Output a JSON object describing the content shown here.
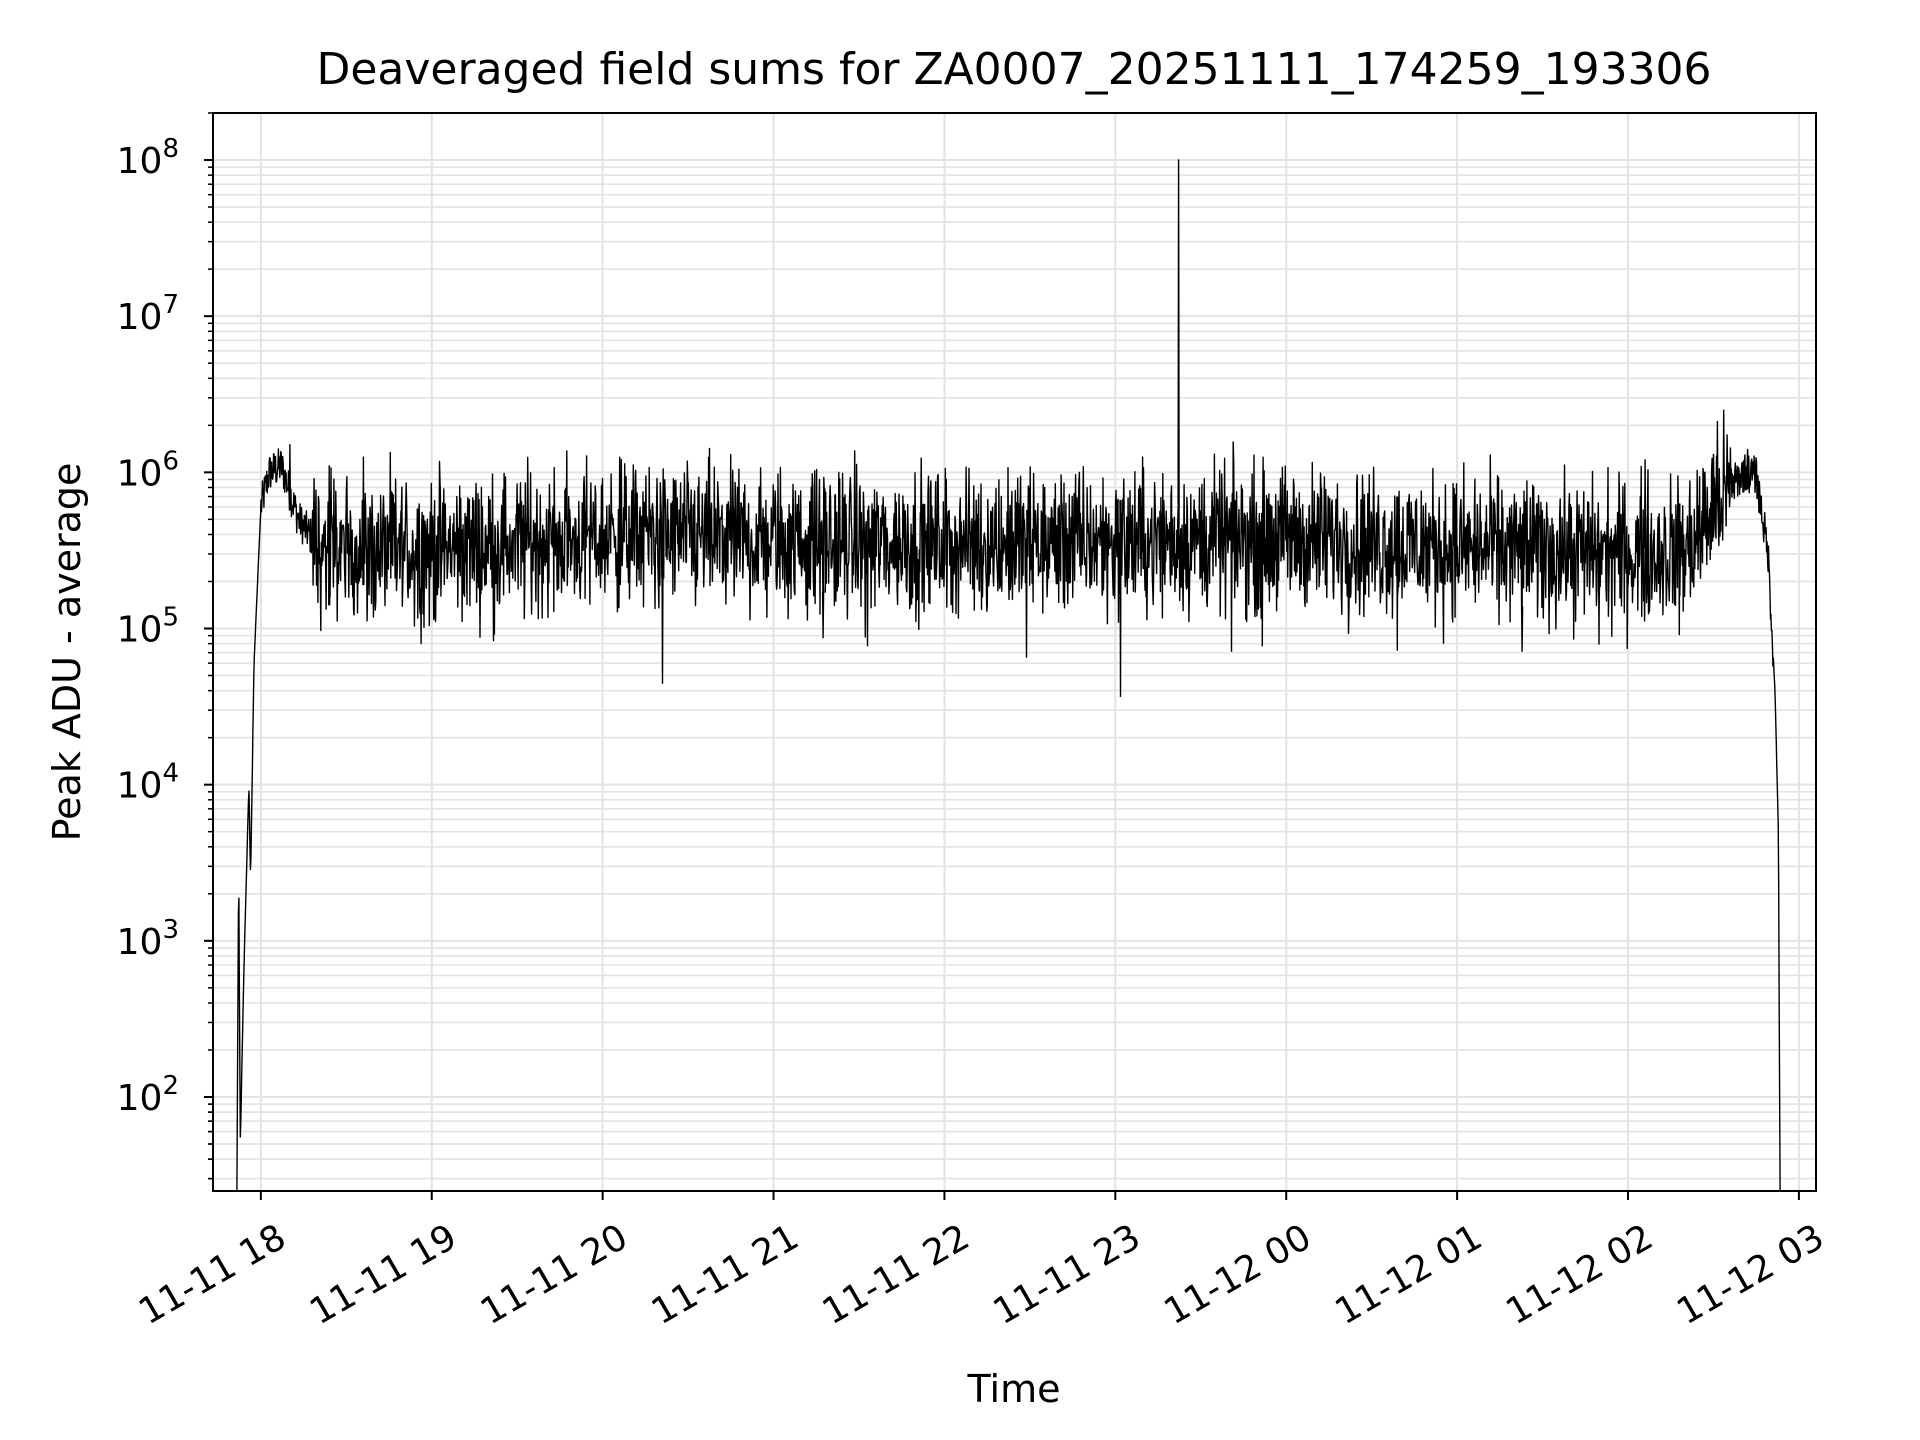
{
  "chart_data": {
    "type": "line",
    "title": "Deaveraged field sums for ZA0007_20251111_174259_193306",
    "xlabel": "Time",
    "ylabel": "Peak ADU - average",
    "yscale": "log",
    "grid": true,
    "xlim_hours": [
      17.72,
      27.1
    ],
    "ylim": [
      25,
      200000000
    ],
    "x_ticks": [
      {
        "hour": 18,
        "label": "11-11 18"
      },
      {
        "hour": 19,
        "label": "11-11 19"
      },
      {
        "hour": 20,
        "label": "11-11 20"
      },
      {
        "hour": 21,
        "label": "11-11 21"
      },
      {
        "hour": 22,
        "label": "11-11 22"
      },
      {
        "hour": 23,
        "label": "11-11 23"
      },
      {
        "hour": 24,
        "label": "11-12 00"
      },
      {
        "hour": 25,
        "label": "11-12 01"
      },
      {
        "hour": 26,
        "label": "11-12 02"
      },
      {
        "hour": 27,
        "label": "11-12 03"
      }
    ],
    "y_ticks": [
      {
        "exponent": "2",
        "value": 100
      },
      {
        "exponent": "3",
        "value": 1000
      },
      {
        "exponent": "4",
        "value": 10000
      },
      {
        "exponent": "5",
        "value": 100000
      },
      {
        "exponent": "6",
        "value": 1000000
      },
      {
        "exponent": "7",
        "value": 10000000
      },
      {
        "exponent": "8",
        "value": 100000000
      }
    ],
    "series": [
      {
        "name": "deaveraged field sum",
        "color": "#000000",
        "envelope": [
          {
            "hour": 17.86,
            "value": 25
          },
          {
            "hour": 17.87,
            "value": 3200
          },
          {
            "hour": 17.88,
            "value": 50
          },
          {
            "hour": 17.9,
            "value": 600
          },
          {
            "hour": 17.92,
            "value": 4000
          },
          {
            "hour": 17.93,
            "value": 9800
          },
          {
            "hour": 17.94,
            "value": 2500
          },
          {
            "hour": 17.96,
            "value": 60000
          },
          {
            "hour": 18.0,
            "value": 600000
          },
          {
            "hour": 18.05,
            "value": 1000000
          },
          {
            "hour": 18.12,
            "value": 1100000
          },
          {
            "hour": 18.22,
            "value": 500000
          },
          {
            "hour": 18.35,
            "value": 320000
          },
          {
            "hour": 19.0,
            "value": 320000
          },
          {
            "hour": 20.2,
            "value": 400000
          },
          {
            "hour": 21.0,
            "value": 360000
          },
          {
            "hour": 22.0,
            "value": 350000
          },
          {
            "hour": 23.0,
            "value": 360000
          },
          {
            "hour": 24.0,
            "value": 380000
          },
          {
            "hour": 25.0,
            "value": 330000
          },
          {
            "hour": 26.0,
            "value": 300000
          },
          {
            "hour": 26.35,
            "value": 320000
          },
          {
            "hour": 26.55,
            "value": 700000
          },
          {
            "hour": 26.68,
            "value": 1000000
          },
          {
            "hour": 26.75,
            "value": 950000
          },
          {
            "hour": 26.82,
            "value": 300000
          },
          {
            "hour": 26.86,
            "value": 40000
          },
          {
            "hour": 26.88,
            "value": 5000
          },
          {
            "hour": 26.89,
            "value": 25
          }
        ],
        "spikes": [
          {
            "hour": 23.37,
            "value": 100000000
          },
          {
            "hour": 23.03,
            "value": 37000
          },
          {
            "hour": 20.35,
            "value": 45000
          },
          {
            "hour": 22.48,
            "value": 66000
          },
          {
            "hour": 21.29,
            "value": 88000
          },
          {
            "hour": 21.55,
            "value": 78000
          },
          {
            "hour": 23.68,
            "value": 72000
          },
          {
            "hour": 23.86,
            "value": 78000
          },
          {
            "hour": 24.65,
            "value": 73000
          },
          {
            "hour": 25.38,
            "value": 72000
          },
          {
            "hour": 25.83,
            "value": 80000
          },
          {
            "hour": 26.3,
            "value": 92000
          },
          {
            "hour": 20.1,
            "value": 1250000
          },
          {
            "hour": 18.6,
            "value": 1250000
          },
          {
            "hour": 18.4,
            "value": 1100000
          },
          {
            "hour": 26.1,
            "value": 1200000
          },
          {
            "hour": 26.5,
            "value": 1300000
          },
          {
            "hour": 26.45,
            "value": 1000000
          },
          {
            "hour": 18.17,
            "value": 1500000
          },
          {
            "hour": 26.7,
            "value": 1400000
          }
        ]
      }
    ]
  }
}
